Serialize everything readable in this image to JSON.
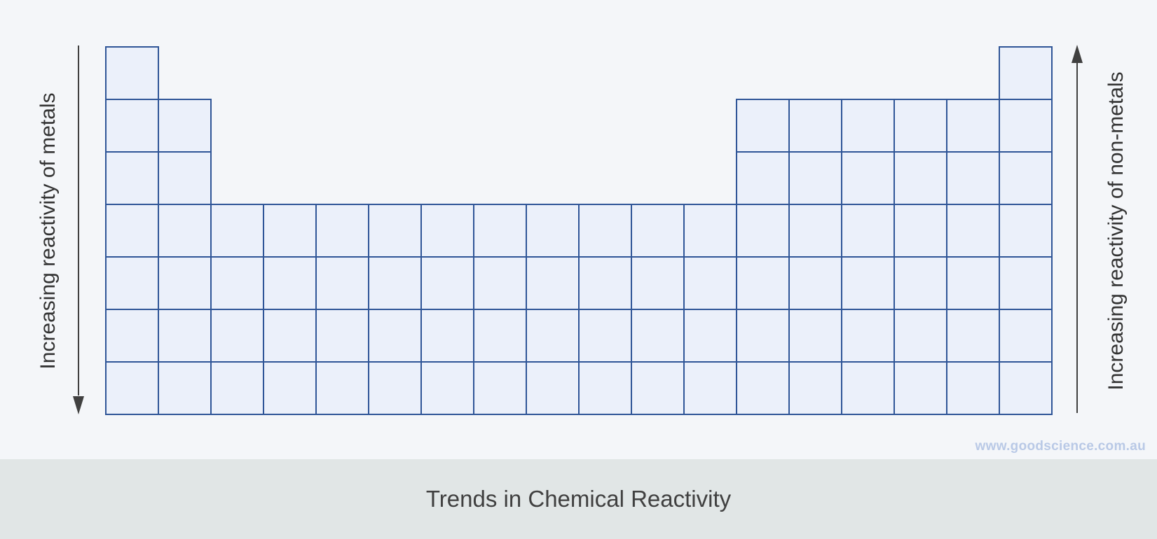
{
  "diagram": {
    "left_label": "Increasing reactivity of metals",
    "right_label": "Increasing reactivity of non-metals",
    "left_arrow_direction": "down",
    "right_arrow_direction": "up",
    "watermark": "www.goodscience.com.au",
    "caption": "Trends in Chemical Reactivity",
    "periodic_table": {
      "groups": 18,
      "periods": 7,
      "cells_per_group": [
        7,
        6,
        4,
        4,
        4,
        4,
        4,
        4,
        4,
        4,
        4,
        4,
        6,
        6,
        6,
        6,
        6,
        7
      ]
    },
    "colors": {
      "cell_fill": "#ebf0fa",
      "cell_border": "#2f5597",
      "arrow": "#404040",
      "background": "#f4f6f9",
      "caption_bar": "#e1e6e6",
      "watermark": "#b9c9e6"
    }
  }
}
